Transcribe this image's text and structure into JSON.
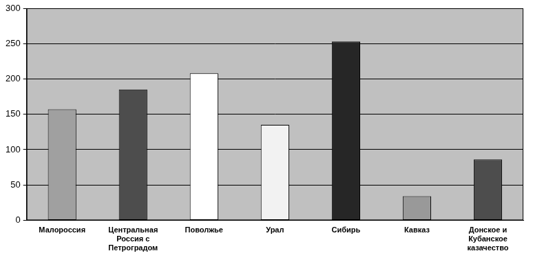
{
  "chart_data": {
    "type": "bar",
    "categories": [
      "Малороссия",
      "Центральная Россия с Петроградом",
      "Поволжье",
      "Урал",
      "Сибирь",
      "Кавказ",
      "Донское и Кубанское казачество"
    ],
    "values": [
      157,
      185,
      208,
      135,
      253,
      34,
      86
    ],
    "colors": [
      "#a0a0a0",
      "#4d4d4d",
      "#ffffff",
      "#f2f2f2",
      "#262626",
      "#999999",
      "#4d4d4d"
    ],
    "ylim": [
      0,
      300
    ],
    "yticks": [
      0,
      50,
      100,
      150,
      200,
      250,
      300
    ],
    "grid": true
  }
}
